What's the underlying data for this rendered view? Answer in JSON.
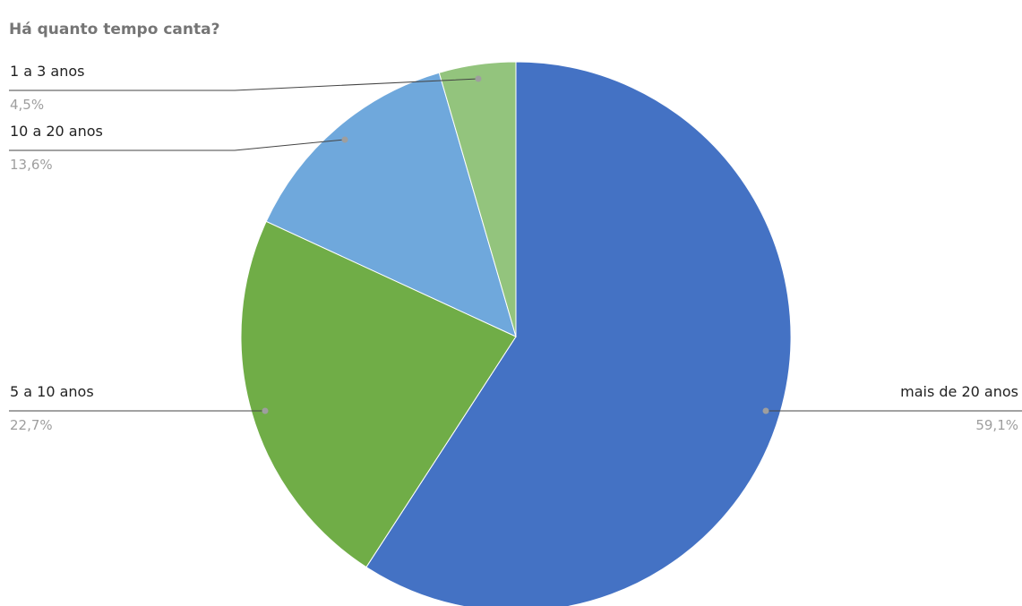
{
  "chart_data": {
    "type": "pie",
    "title": "Há quanto tempo canta?",
    "slices": [
      {
        "label": "mais de 20 anos",
        "percent_label": "59,1%",
        "value": 59.1,
        "color": "#4472c4"
      },
      {
        "label": "5 a 10 anos",
        "percent_label": "22,7%",
        "value": 22.7,
        "color": "#70ad47"
      },
      {
        "label": "10 a 20 anos",
        "percent_label": "13,6%",
        "value": 13.6,
        "color": "#6fa8dc"
      },
      {
        "label": "1 a 3 anos",
        "percent_label": "4,5%",
        "value": 4.5,
        "color": "#93c47d"
      }
    ],
    "start_angle": "12 o'clock",
    "direction": "clockwise",
    "legend": "none"
  }
}
